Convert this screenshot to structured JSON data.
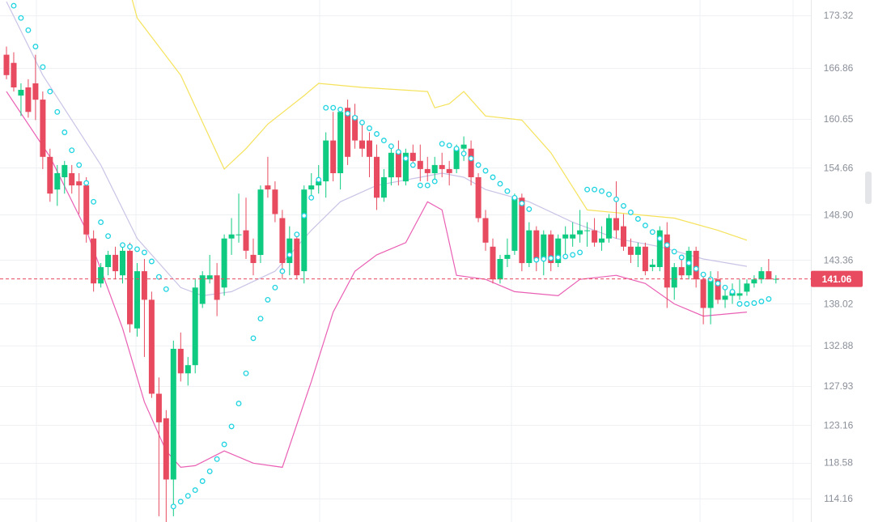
{
  "chart_data": {
    "type": "candlestick",
    "ylim": [
      111.3,
      175.2
    ],
    "y_ticks": [
      "173.32",
      "166.86",
      "160.65",
      "154.66",
      "148.90",
      "143.36",
      "138.02",
      "132.88",
      "127.93",
      "123.16",
      "118.58",
      "114.16"
    ],
    "current_price": "141.06",
    "grid": true,
    "colors": {
      "up": "#0ecb81",
      "down": "#e84a5f",
      "upper_band": "#f5e25a",
      "middle_band": "#c9c3e6",
      "lower_band": "#ea5fb4",
      "sar": "#1fd3e0",
      "price_line": "#e84a5f",
      "grid": "#eef0f3"
    },
    "candles": [
      [
        168.5,
        169.5,
        165.5,
        166.0
      ],
      [
        167.5,
        168.8,
        164.0,
        164.5
      ],
      [
        163.5,
        165.0,
        161.0,
        164.2
      ],
      [
        164.5,
        165.5,
        160.8,
        161.5
      ],
      [
        165.0,
        168.5,
        160.5,
        163.0
      ],
      [
        163.0,
        164.0,
        154.5,
        156.0
      ],
      [
        156.0,
        157.0,
        150.5,
        151.5
      ],
      [
        152.0,
        155.0,
        150.0,
        154.0
      ],
      [
        153.5,
        155.5,
        151.5,
        155.0
      ],
      [
        154.0,
        155.0,
        151.5,
        152.5
      ],
      [
        153.0,
        154.0,
        149.0,
        152.5
      ],
      [
        152.5,
        153.5,
        145.5,
        146.5
      ],
      [
        146.0,
        147.0,
        139.5,
        140.5
      ],
      [
        140.5,
        143.0,
        140.0,
        142.5
      ],
      [
        142.5,
        144.5,
        141.5,
        144.0
      ],
      [
        144.0,
        145.0,
        141.0,
        142.0
      ],
      [
        141.5,
        145.0,
        140.5,
        144.5
      ],
      [
        144.5,
        145.5,
        134.5,
        135.5
      ],
      [
        135.0,
        143.0,
        134.0,
        142.0
      ],
      [
        142.0,
        143.5,
        131.5,
        138.5
      ],
      [
        138.5,
        139.5,
        126.5,
        127.0
      ],
      [
        127.0,
        129.0,
        112.0,
        123.5
      ],
      [
        124.0,
        125.0,
        111.0,
        116.5
      ],
      [
        116.5,
        133.5,
        112.0,
        132.5
      ],
      [
        132.5,
        134.5,
        128.5,
        129.5
      ],
      [
        129.5,
        131.5,
        128.0,
        130.5
      ],
      [
        130.5,
        141.0,
        129.5,
        140.0
      ],
      [
        138.0,
        142.0,
        137.5,
        141.5
      ],
      [
        141.0,
        144.0,
        140.5,
        141.5
      ],
      [
        141.5,
        143.0,
        136.5,
        138.5
      ],
      [
        140.0,
        146.5,
        139.0,
        146.0
      ],
      [
        146.0,
        148.5,
        144.0,
        146.5
      ],
      [
        146.5,
        151.5,
        145.5,
        146.5
      ],
      [
        147.0,
        151.0,
        143.5,
        144.5
      ],
      [
        144.0,
        146.0,
        141.5,
        143.0
      ],
      [
        144.0,
        152.5,
        143.0,
        152.0
      ],
      [
        152.5,
        156.0,
        151.0,
        152.0
      ],
      [
        152.0,
        153.0,
        148.0,
        149.0
      ],
      [
        148.5,
        149.5,
        141.0,
        143.0
      ],
      [
        143.0,
        147.5,
        141.5,
        146.0
      ],
      [
        146.0,
        146.5,
        141.0,
        141.5
      ],
      [
        142.0,
        152.5,
        140.5,
        152.0
      ],
      [
        152.0,
        154.0,
        151.0,
        152.5
      ],
      [
        152.5,
        155.0,
        151.5,
        153.0
      ],
      [
        153.0,
        159.0,
        151.0,
        158.0
      ],
      [
        158.0,
        161.5,
        153.0,
        154.0
      ],
      [
        154.0,
        162.0,
        152.0,
        161.5
      ],
      [
        162.0,
        163.0,
        155.0,
        156.0
      ],
      [
        161.0,
        162.5,
        157.0,
        158.0
      ],
      [
        158.0,
        160.5,
        156.0,
        157.0
      ],
      [
        158.0,
        159.0,
        153.5,
        156.0
      ],
      [
        156.0,
        157.5,
        149.5,
        151.0
      ],
      [
        151.0,
        154.5,
        150.5,
        153.5
      ],
      [
        153.5,
        157.0,
        152.5,
        156.5
      ],
      [
        156.5,
        158.0,
        152.5,
        153.5
      ],
      [
        153.0,
        157.0,
        152.5,
        156.5
      ],
      [
        156.5,
        157.5,
        155.0,
        155.5
      ],
      [
        155.5,
        157.5,
        153.0,
        154.5
      ],
      [
        154.5,
        156.0,
        153.0,
        154.0
      ],
      [
        154.0,
        156.0,
        153.0,
        155.0
      ],
      [
        155.0,
        156.5,
        153.5,
        154.5
      ],
      [
        154.5,
        155.5,
        152.5,
        154.0
      ],
      [
        154.5,
        157.5,
        154.0,
        157.0
      ],
      [
        157.0,
        158.5,
        155.5,
        157.5
      ],
      [
        157.0,
        158.0,
        152.5,
        153.5
      ],
      [
        153.5,
        154.0,
        148.0,
        148.5
      ],
      [
        148.5,
        149.5,
        144.5,
        145.5
      ],
      [
        145.0,
        146.0,
        140.5,
        141.0
      ],
      [
        141.0,
        144.0,
        140.5,
        143.5
      ],
      [
        143.5,
        146.0,
        142.5,
        144.0
      ],
      [
        144.5,
        151.5,
        144.0,
        151.0
      ],
      [
        151.0,
        151.5,
        142.0,
        143.0
      ],
      [
        143.0,
        148.0,
        142.5,
        147.0
      ],
      [
        147.0,
        147.5,
        142.0,
        143.5
      ],
      [
        143.5,
        147.0,
        141.5,
        146.5
      ],
      [
        146.5,
        147.0,
        142.0,
        143.0
      ],
      [
        143.0,
        146.5,
        142.5,
        146.0
      ],
      [
        146.0,
        147.5,
        144.0,
        146.5
      ],
      [
        146.0,
        148.0,
        145.0,
        146.5
      ],
      [
        146.5,
        149.5,
        145.5,
        147.0
      ],
      [
        147.0,
        148.0,
        145.0,
        147.0
      ],
      [
        147.0,
        148.5,
        145.0,
        145.5
      ],
      [
        145.5,
        147.5,
        144.5,
        146.0
      ],
      [
        146.0,
        149.0,
        145.5,
        148.5
      ],
      [
        148.5,
        153.0,
        146.0,
        147.0
      ],
      [
        147.5,
        149.0,
        144.5,
        145.0
      ],
      [
        145.0,
        146.0,
        143.0,
        144.0
      ],
      [
        144.0,
        145.5,
        142.5,
        145.0
      ],
      [
        145.0,
        145.5,
        141.5,
        142.0
      ],
      [
        142.5,
        143.5,
        142.0,
        142.8
      ],
      [
        142.5,
        147.5,
        142.0,
        147.0
      ],
      [
        146.5,
        148.0,
        137.5,
        140.0
      ],
      [
        140.0,
        143.0,
        138.5,
        142.5
      ],
      [
        142.5,
        144.0,
        141.0,
        141.5
      ],
      [
        141.5,
        145.0,
        141.0,
        144.5
      ],
      [
        144.5,
        145.0,
        140.0,
        141.0
      ],
      [
        141.0,
        141.5,
        135.5,
        137.5
      ],
      [
        137.5,
        142.0,
        135.5,
        141.0
      ],
      [
        141.0,
        142.0,
        138.0,
        138.5
      ],
      [
        138.5,
        140.0,
        137.5,
        139.0
      ],
      [
        139.0,
        140.5,
        138.0,
        139.5
      ],
      [
        139.0,
        141.0,
        138.5,
        139.3
      ],
      [
        139.5,
        141.0,
        139.0,
        140.5
      ],
      [
        140.5,
        141.5,
        140.0,
        141.0
      ],
      [
        141.0,
        142.5,
        140.5,
        142.0
      ],
      [
        142.0,
        143.5,
        141.0,
        141.0
      ],
      [
        141.0,
        141.5,
        140.5,
        141.06
      ]
    ],
    "upper_band": [
      [
        0,
        194.0
      ],
      [
        14,
        186.0
      ],
      [
        18,
        173.0
      ],
      [
        24,
        166.0
      ],
      [
        30,
        154.5
      ],
      [
        33,
        157.0
      ],
      [
        36,
        160.0
      ],
      [
        41,
        163.5
      ],
      [
        43,
        165.0
      ],
      [
        49,
        164.5
      ],
      [
        58,
        164.0
      ],
      [
        59,
        162.0
      ],
      [
        61,
        162.5
      ],
      [
        63,
        164.0
      ],
      [
        66,
        161.0
      ],
      [
        71,
        160.5
      ],
      [
        75,
        156.5
      ],
      [
        80,
        149.5
      ],
      [
        86,
        149.0
      ],
      [
        92,
        148.5
      ],
      [
        98,
        147.0
      ],
      [
        102,
        145.8
      ]
    ],
    "middle_band": [
      [
        0,
        175.0
      ],
      [
        5,
        166.0
      ],
      [
        13,
        155.0
      ],
      [
        18,
        146.0
      ],
      [
        24,
        140.0
      ],
      [
        27,
        139.0
      ],
      [
        31,
        139.5
      ],
      [
        37,
        142.0
      ],
      [
        42,
        147.0
      ],
      [
        46,
        150.5
      ],
      [
        51,
        152.5
      ],
      [
        57,
        153.5
      ],
      [
        60,
        154.0
      ],
      [
        63,
        153.5
      ],
      [
        66,
        152.0
      ],
      [
        72,
        150.5
      ],
      [
        78,
        148.0
      ],
      [
        84,
        146.0
      ],
      [
        90,
        145.0
      ],
      [
        96,
        143.5
      ],
      [
        102,
        142.6
      ]
    ],
    "lower_band": [
      [
        0,
        164.0
      ],
      [
        6,
        156.0
      ],
      [
        11,
        147.0
      ],
      [
        16,
        135.0
      ],
      [
        19,
        126.0
      ],
      [
        22,
        120.0
      ],
      [
        24,
        118.0
      ],
      [
        26,
        118.2
      ],
      [
        30,
        120.0
      ],
      [
        34,
        118.5
      ],
      [
        38,
        118.0
      ],
      [
        42,
        128.5
      ],
      [
        45,
        137.0
      ],
      [
        48,
        142.0
      ],
      [
        51,
        144.0
      ],
      [
        55,
        145.5
      ],
      [
        58,
        150.5
      ],
      [
        60,
        149.5
      ],
      [
        62,
        141.5
      ],
      [
        66,
        141.0
      ],
      [
        70,
        139.5
      ],
      [
        76,
        139.0
      ],
      [
        79,
        141.0
      ],
      [
        84,
        141.5
      ],
      [
        88,
        140.5
      ],
      [
        92,
        138.0
      ],
      [
        96,
        136.5
      ],
      [
        102,
        137.0
      ]
    ],
    "sar": [
      [
        1,
        174.5
      ],
      [
        2,
        173.0
      ],
      [
        3,
        171.5
      ],
      [
        4,
        169.5
      ],
      [
        5,
        167.0
      ],
      [
        6,
        164.0
      ],
      [
        7,
        161.5
      ],
      [
        8,
        159.0
      ],
      [
        9,
        156.8
      ],
      [
        10,
        155.0
      ],
      [
        11,
        152.8
      ],
      [
        12,
        150.5
      ],
      [
        13,
        148.0
      ],
      [
        14,
        146.3
      ],
      [
        16,
        145.2
      ],
      [
        17,
        145.0
      ],
      [
        18,
        144.7
      ],
      [
        19,
        144.3
      ],
      [
        20,
        143.2
      ],
      [
        21,
        141.3
      ],
      [
        22,
        139.8
      ],
      [
        23,
        113.2
      ],
      [
        24,
        113.8
      ],
      [
        25,
        114.5
      ],
      [
        26,
        115.2
      ],
      [
        27,
        116.3
      ],
      [
        28,
        117.5
      ],
      [
        29,
        119.0
      ],
      [
        30,
        120.8
      ],
      [
        31,
        123.0
      ],
      [
        32,
        125.8
      ],
      [
        33,
        129.5
      ],
      [
        34,
        133.8
      ],
      [
        35,
        136.2
      ],
      [
        36,
        138.5
      ],
      [
        37,
        140.0
      ],
      [
        38,
        142.0
      ],
      [
        39,
        144.0
      ],
      [
        40,
        146.5
      ],
      [
        41,
        148.8
      ],
      [
        42,
        151.0
      ],
      [
        43,
        153.2
      ],
      [
        44,
        162.0
      ],
      [
        45,
        162.0
      ],
      [
        46,
        161.8
      ],
      [
        47,
        161.3
      ],
      [
        48,
        160.8
      ],
      [
        49,
        160.2
      ],
      [
        50,
        159.5
      ],
      [
        51,
        158.8
      ],
      [
        52,
        158.0
      ],
      [
        53,
        157.3
      ],
      [
        54,
        156.6
      ],
      [
        55,
        155.8
      ],
      [
        56,
        155.0
      ],
      [
        57,
        152.5
      ],
      [
        58,
        152.5
      ],
      [
        59,
        153.0
      ],
      [
        60,
        157.6
      ],
      [
        61,
        157.4
      ],
      [
        62,
        157.0
      ],
      [
        63,
        156.4
      ],
      [
        64,
        155.8
      ],
      [
        65,
        155.0
      ],
      [
        66,
        154.3
      ],
      [
        67,
        153.5
      ],
      [
        68,
        152.7
      ],
      [
        69,
        151.8
      ],
      [
        70,
        151.0
      ],
      [
        71,
        150.3
      ],
      [
        72,
        149.6
      ],
      [
        73,
        143.4
      ],
      [
        74,
        143.5
      ],
      [
        75,
        143.6
      ],
      [
        76,
        143.7
      ],
      [
        77,
        143.8
      ],
      [
        78,
        144.0
      ],
      [
        79,
        144.3
      ],
      [
        80,
        152.0
      ],
      [
        81,
        152.0
      ],
      [
        82,
        151.8
      ],
      [
        83,
        151.4
      ],
      [
        84,
        150.8
      ],
      [
        85,
        150.0
      ],
      [
        86,
        149.2
      ],
      [
        87,
        148.4
      ],
      [
        88,
        147.6
      ],
      [
        89,
        146.8
      ],
      [
        90,
        146.0
      ],
      [
        91,
        145.2
      ],
      [
        92,
        144.4
      ],
      [
        93,
        143.7
      ],
      [
        94,
        143.0
      ],
      [
        95,
        142.3
      ],
      [
        96,
        141.6
      ],
      [
        97,
        141.0
      ],
      [
        98,
        140.5
      ],
      [
        99,
        140.0
      ],
      [
        100,
        139.5
      ],
      [
        101,
        138.0
      ],
      [
        102,
        138.0
      ],
      [
        103,
        138.1
      ],
      [
        104,
        138.3
      ],
      [
        105,
        138.6
      ]
    ]
  }
}
